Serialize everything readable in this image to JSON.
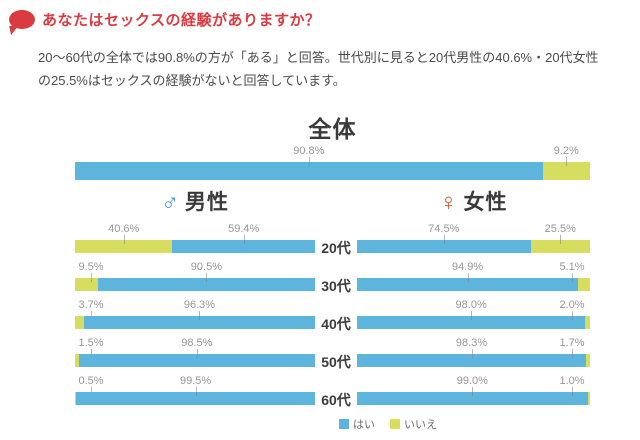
{
  "header": {
    "title": "あなたはセックスの経験がありますか？"
  },
  "description": "20〜60代の全体では90.8%の方が「ある」と回答。世代別に見ると20代男性の40.6%・20代女性の25.5%はセックスの経験がないと回答しています。",
  "chart_data": {
    "type": "bar",
    "subtype": "mirrored-stacked-horizontal",
    "unit": "%",
    "overall": {
      "label": "全体",
      "yes": 90.8,
      "no": 9.2
    },
    "groups": [
      {
        "label": "男性",
        "symbol": "♂",
        "symbol_color": "#3e9bd3"
      },
      {
        "label": "女性",
        "symbol": "♀",
        "symbol_color": "#d85b26"
      }
    ],
    "categories": [
      "20代",
      "30代",
      "40代",
      "50代",
      "60代"
    ],
    "series": [
      {
        "name": "男性 はい",
        "values": [
          59.4,
          90.5,
          96.3,
          98.5,
          99.5
        ]
      },
      {
        "name": "男性 いいえ",
        "values": [
          40.6,
          9.5,
          3.7,
          1.5,
          0.5
        ]
      },
      {
        "name": "女性 はい",
        "values": [
          74.5,
          94.9,
          98.0,
          98.3,
          99.0
        ]
      },
      {
        "name": "女性 いいえ",
        "values": [
          25.5,
          5.1,
          2.0,
          1.7,
          1.0
        ]
      }
    ],
    "legend": [
      {
        "label": "はい",
        "color": "#5db4dc"
      },
      {
        "label": "いいえ",
        "color": "#d7de5f"
      }
    ],
    "colors": {
      "yes": "#5db4dc",
      "no": "#d7de5f"
    },
    "legend_position": "bottom-center",
    "grid": false
  },
  "theme": {
    "accent_red": "#d93b40"
  }
}
